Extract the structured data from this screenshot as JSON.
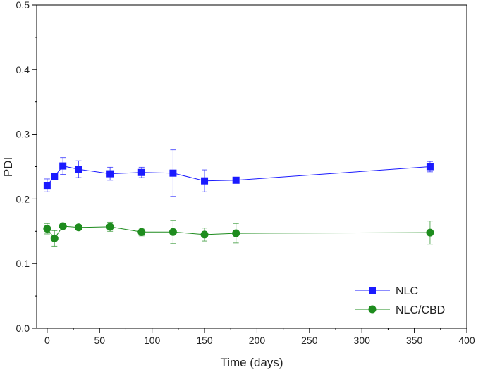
{
  "chart_data": {
    "type": "line",
    "xlabel": "Time (days)",
    "ylabel": "PDI",
    "xlim": [
      -10,
      400
    ],
    "ylim": [
      0.0,
      0.5
    ],
    "xticks": [
      0,
      50,
      100,
      150,
      200,
      250,
      300,
      350,
      400
    ],
    "yticks": [
      0.0,
      0.1,
      0.2,
      0.3,
      0.4,
      0.5
    ],
    "ytick_labels": [
      "0.0",
      "0.1",
      "0.2",
      "0.3",
      "0.4",
      "0.5"
    ],
    "grid": false,
    "legend_position": "bottom-right",
    "series": [
      {
        "name": "NLC",
        "color": "#1a1aff",
        "marker": "square",
        "x": [
          0,
          7,
          15,
          30,
          60,
          90,
          120,
          150,
          180,
          365
        ],
        "y": [
          0.221,
          0.235,
          0.251,
          0.246,
          0.239,
          0.241,
          0.24,
          0.228,
          0.229,
          0.25
        ],
        "err": [
          0.01,
          0.005,
          0.013,
          0.013,
          0.01,
          0.008,
          0.036,
          0.017,
          0.003,
          0.008
        ]
      },
      {
        "name": "NLC/CBD",
        "color": "#1e8c1e",
        "marker": "circle",
        "x": [
          0,
          7,
          15,
          30,
          60,
          90,
          120,
          150,
          180,
          365
        ],
        "y": [
          0.154,
          0.139,
          0.158,
          0.156,
          0.157,
          0.149,
          0.149,
          0.145,
          0.147,
          0.148
        ],
        "err": [
          0.008,
          0.012,
          0.003,
          0.003,
          0.007,
          0.006,
          0.018,
          0.01,
          0.015,
          0.018
        ]
      }
    ]
  }
}
